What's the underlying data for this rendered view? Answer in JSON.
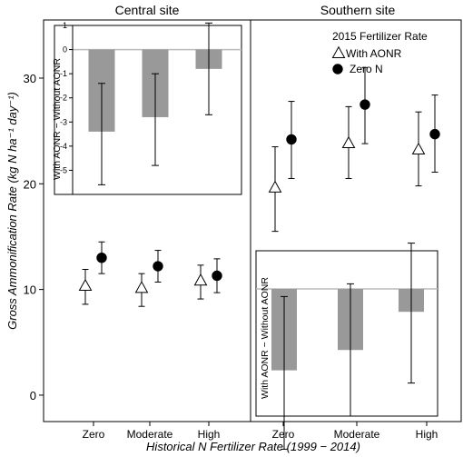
{
  "chart_data": {
    "type": "scatter",
    "ylabel": "Gross Ammonification Rate (kg N ha⁻¹ day⁻¹)",
    "xlabel": "Historical N Fertilizer Rate (1999 − 2014)",
    "y_range": [
      -2.5,
      35.5
    ],
    "y_ticks": [
      0,
      10,
      20,
      30
    ],
    "categories": [
      "Zero",
      "Moderate",
      "High"
    ],
    "legend": {
      "title": "2015 Fertilizer Rate",
      "entries": [
        "With AONR",
        "Zero N"
      ],
      "placement": "top-right of Southern site panel"
    },
    "panels": [
      {
        "title": "Central site",
        "series": [
          {
            "name": "With AONR",
            "marker": "open-triangle",
            "values": [
              10.3,
              10.1,
              10.8
            ],
            "lower": [
              8.6,
              8.4,
              9.1
            ],
            "upper": [
              11.9,
              11.5,
              12.3
            ]
          },
          {
            "name": "Zero N",
            "marker": "filled-circle",
            "values": [
              13.0,
              12.2,
              11.3
            ],
            "lower": [
              11.5,
              10.7,
              9.7
            ],
            "upper": [
              14.5,
              13.7,
              12.9
            ]
          }
        ],
        "inset": {
          "ylabel": "With AONR − Without AONR",
          "y_range": [
            -6.0,
            1.0
          ],
          "y_ticks": [
            1,
            0,
            -1,
            -2,
            -3,
            -4,
            -5
          ],
          "values": [
            -3.4,
            -2.8,
            -0.8
          ],
          "lower": [
            -5.6,
            -4.8,
            -2.7
          ],
          "upper": [
            -1.4,
            -1.0,
            1.1
          ]
        }
      },
      {
        "title": "Southern site",
        "series": [
          {
            "name": "With AONR",
            "marker": "open-triangle",
            "values": [
              19.6,
              23.8,
              23.2
            ],
            "lower": [
              15.5,
              20.5,
              19.8
            ],
            "upper": [
              23.5,
              27.3,
              26.8
            ]
          },
          {
            "name": "Zero N",
            "marker": "filled-circle",
            "values": [
              24.2,
              27.5,
              24.7
            ],
            "lower": [
              20.5,
              23.8,
              21.1
            ],
            "upper": [
              27.8,
              31.0,
              28.4
            ]
          }
        ],
        "inset": {
          "ylabel": "With AONR − Without AONR",
          "y_range": [
            -5.0,
            1.5
          ],
          "y_ticks": [],
          "values": [
            -3.2,
            -2.4,
            -0.9
          ],
          "lower": [
            -6.3,
            -5.0,
            -3.7
          ],
          "upper": [
            -0.3,
            0.2,
            1.8
          ]
        }
      }
    ]
  }
}
